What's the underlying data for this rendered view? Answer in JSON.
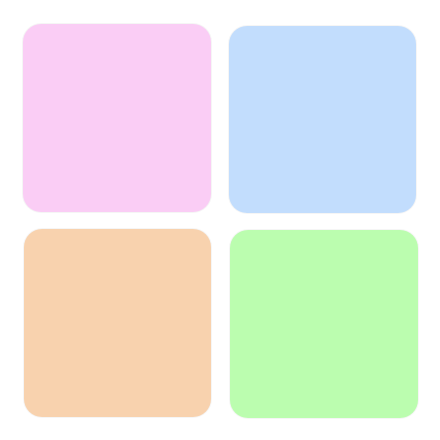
{
  "tiles": [
    {
      "id": "pink",
      "color": "#facdf5"
    },
    {
      "id": "blue",
      "color": "#c2ddfd"
    },
    {
      "id": "orange",
      "color": "#f8d2ae"
    },
    {
      "id": "green",
      "color": "#bbfdaf"
    }
  ]
}
